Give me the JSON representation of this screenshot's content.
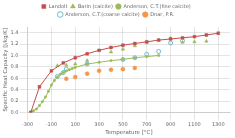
{
  "chart_data": {
    "type": "line",
    "xlabel": "Temperature [°C]",
    "ylabel": "Specific Heat Capacity [J/kg/K]",
    "xlim": [
      -300,
      1400
    ],
    "ylim": [
      0,
      1.5
    ],
    "xticks": [
      -300,
      -100,
      100,
      300,
      500,
      700,
      900,
      1100,
      1300
    ],
    "yticks": [
      {
        "value": 0,
        "label": "0.0"
      },
      0.2,
      0.4,
      0.6,
      0.8,
      {
        "value": 1,
        "label": "1.0"
      },
      1.2,
      1.4
    ],
    "grid": true,
    "legend": "top",
    "series": [
      {
        "name": "Landolt",
        "color": "#c0504d",
        "marker": "square",
        "line_style": "solid",
        "x": [
          -273,
          -200,
          -100,
          0,
          100,
          200,
          300,
          400,
          500,
          600,
          700,
          800,
          900,
          1000,
          1100,
          1200,
          1300
        ],
        "values": [
          0.0,
          0.45,
          0.73,
          0.87,
          0.96,
          1.03,
          1.09,
          1.14,
          1.18,
          1.21,
          1.24,
          1.27,
          1.29,
          1.31,
          1.33,
          1.36,
          1.39
        ]
      },
      {
        "name": "Barin (calcite)",
        "color": "#9bbb59",
        "marker": "triangle",
        "line_style": "none",
        "x": [
          -50,
          25,
          100,
          200,
          400,
          500,
          600,
          700,
          800,
          900,
          1000,
          1100,
          1200
        ],
        "values": [
          0.82,
          0.83,
          0.85,
          0.91,
          1.06,
          1.11,
          1.17,
          1.23,
          1.27,
          1.3,
          1.23,
          1.24,
          1.25
        ]
      },
      {
        "name": "Anderson, C.T.(fine calcite)",
        "color": "#9bbb59",
        "marker": "dot",
        "line_style": "solid",
        "x": [
          -273,
          -250,
          -225,
          -200,
          -175,
          -150,
          -125,
          -100,
          -75,
          -50,
          -25,
          0,
          25,
          50,
          75,
          100,
          200,
          300,
          400,
          500,
          600,
          700,
          800
        ],
        "values": [
          0.01,
          0.03,
          0.06,
          0.12,
          0.19,
          0.27,
          0.37,
          0.48,
          0.56,
          0.62,
          0.67,
          0.7,
          0.73,
          0.75,
          0.77,
          0.79,
          0.85,
          0.88,
          0.91,
          0.93,
          0.96,
          0.98,
          1.0
        ]
      },
      {
        "name": "Anderson, C.T.(coarse calcite)",
        "color": "#4bacc6",
        "marker": "open_circle",
        "line_style": "none",
        "x": [
          -50,
          0,
          25,
          200,
          500,
          600,
          700,
          800,
          900,
          1000
        ],
        "values": [
          0.63,
          0.7,
          0.76,
          0.85,
          0.93,
          0.96,
          1.02,
          1.07,
          1.22,
          1.26
        ]
      },
      {
        "name": "Dnar, P.R.",
        "color": "#f79646",
        "marker": "circle",
        "line_style": "none",
        "x": [
          25,
          100,
          200,
          300,
          400,
          500,
          600
        ],
        "values": [
          0.59,
          0.62,
          0.68,
          0.73,
          0.75,
          0.76,
          0.78
        ]
      }
    ]
  }
}
